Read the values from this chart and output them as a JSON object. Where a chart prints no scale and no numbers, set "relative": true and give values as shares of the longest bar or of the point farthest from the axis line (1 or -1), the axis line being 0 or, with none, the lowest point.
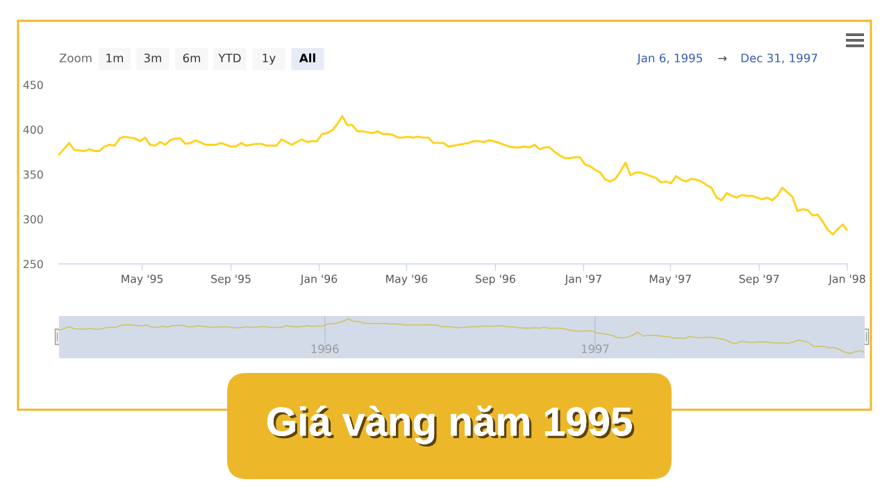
{
  "chart_data": [
    {
      "type": "line",
      "title": "Giá vàng năm 1995",
      "x": [
        "1995-01-06",
        "1995-01-20",
        "1995-01-27",
        "1995-02-10",
        "1995-02-17",
        "1995-02-24",
        "1995-03-03",
        "1995-03-10",
        "1995-03-17",
        "1995-03-24",
        "1995-03-31",
        "1995-04-07",
        "1995-04-21",
        "1995-04-28",
        "1995-05-05",
        "1995-05-12",
        "1995-05-19",
        "1995-05-26",
        "1995-06-02",
        "1995-06-09",
        "1995-06-16",
        "1995-06-23",
        "1995-06-30",
        "1995-07-07",
        "1995-07-14",
        "1995-07-28",
        "1995-08-11",
        "1995-08-18",
        "1995-08-25",
        "1995-09-01",
        "1995-09-08",
        "1995-09-15",
        "1995-09-22",
        "1995-09-29",
        "1995-10-06",
        "1995-10-13",
        "1995-10-20",
        "1995-11-03",
        "1995-11-10",
        "1995-11-17",
        "1995-11-24",
        "1995-12-01",
        "1995-12-08",
        "1995-12-15",
        "1995-12-22",
        "1995-12-29",
        "1996-01-05",
        "1996-01-12",
        "1996-01-19",
        "1996-01-26",
        "1996-02-02",
        "1996-02-09",
        "1996-02-16",
        "1996-02-23",
        "1996-03-01",
        "1996-03-08",
        "1996-03-15",
        "1996-03-22",
        "1996-03-29",
        "1996-04-05",
        "1996-04-12",
        "1996-04-19",
        "1996-04-26",
        "1996-05-03",
        "1996-05-10",
        "1996-05-17",
        "1996-05-24",
        "1996-05-31",
        "1996-06-07",
        "1996-06-14",
        "1996-06-21",
        "1996-06-28",
        "1996-07-05",
        "1996-07-12",
        "1996-07-19",
        "1996-07-26",
        "1996-08-02",
        "1996-08-09",
        "1996-08-16",
        "1996-08-23",
        "1996-08-30",
        "1996-09-06",
        "1996-09-13",
        "1996-09-20",
        "1996-09-27",
        "1996-10-04",
        "1996-10-11",
        "1996-10-18",
        "1996-10-25",
        "1996-11-01",
        "1996-11-08",
        "1996-11-15",
        "1996-11-22",
        "1996-11-29",
        "1996-12-06",
        "1996-12-13",
        "1996-12-20",
        "1996-12-27",
        "1997-01-03",
        "1997-01-10",
        "1997-01-17",
        "1997-01-24",
        "1997-01-31",
        "1997-02-07",
        "1997-02-14",
        "1997-02-21",
        "1997-02-28",
        "1997-03-07",
        "1997-03-14",
        "1997-03-21",
        "1997-03-28",
        "1997-04-04",
        "1997-04-11",
        "1997-04-18",
        "1997-04-25",
        "1997-05-02",
        "1997-05-09",
        "1997-05-16",
        "1997-05-23",
        "1997-05-30",
        "1997-06-06",
        "1997-06-13",
        "1997-06-20",
        "1997-06-27",
        "1997-07-04",
        "1997-07-11",
        "1997-07-18",
        "1997-07-25",
        "1997-08-01",
        "1997-08-08",
        "1997-08-15",
        "1997-08-22",
        "1997-08-29",
        "1997-09-05",
        "1997-09-12",
        "1997-09-19",
        "1997-09-26",
        "1997-10-03",
        "1997-10-10",
        "1997-10-17",
        "1997-10-24",
        "1997-10-31",
        "1997-11-07",
        "1997-11-14",
        "1997-11-21",
        "1997-11-28",
        "1997-12-05",
        "1997-12-12",
        "1997-12-19",
        "1997-12-26",
        "1997-12-31"
      ],
      "series": [
        {
          "color": "#ffd21a",
          "values": [
            372,
            385,
            377,
            376,
            378,
            376,
            376,
            381,
            383,
            382,
            390,
            392,
            390,
            387,
            391,
            383,
            382,
            386,
            383,
            388,
            390,
            390,
            384,
            385,
            388,
            383,
            383,
            385,
            383,
            381,
            381,
            385,
            382,
            383,
            384,
            384,
            382,
            382,
            389,
            386,
            383,
            386,
            389,
            386,
            387,
            387,
            395,
            396,
            399,
            406,
            415,
            405,
            405,
            398,
            398,
            397,
            396,
            398,
            395,
            395,
            394,
            391,
            391,
            392,
            391,
            392,
            391,
            391,
            385,
            385,
            385,
            381,
            382,
            383,
            384,
            385,
            387,
            387,
            386,
            388,
            387,
            385,
            383,
            381,
            380,
            380,
            381,
            380,
            383,
            378,
            380,
            380,
            375,
            371,
            368,
            368,
            369,
            369,
            361,
            359,
            355,
            352,
            344,
            342,
            345,
            353,
            363,
            349,
            352,
            352,
            350,
            348,
            346,
            341,
            342,
            340,
            348,
            344,
            342,
            345,
            344,
            342,
            338,
            335,
            324,
            321,
            329,
            326,
            324,
            327,
            326,
            326,
            324,
            322,
            324,
            321,
            326,
            335,
            330,
            325,
            309,
            311,
            310,
            304,
            305,
            297,
            288,
            283,
            289,
            294,
            288
          ]
        }
      ],
      "xlim": [
        "1995-01-06",
        "1998-01-01"
      ],
      "xticks": [
        {
          "value": "1995-05-01",
          "label": "May '95"
        },
        {
          "value": "1995-09-01",
          "label": "Sep '95"
        },
        {
          "value": "1996-01-01",
          "label": "Jan '96"
        },
        {
          "value": "1996-05-01",
          "label": "May '96"
        },
        {
          "value": "1996-09-01",
          "label": "Sep '96"
        },
        {
          "value": "1997-01-01",
          "label": "Jan '97"
        },
        {
          "value": "1997-05-01",
          "label": "May '97"
        },
        {
          "value": "1997-09-01",
          "label": "Sep '97"
        },
        {
          "value": "1998-01-01",
          "label": "Jan '98"
        }
      ],
      "ylim": [
        250,
        450
      ],
      "yticks": [
        250,
        300,
        350,
        400,
        450
      ],
      "annotations": [
        "Zoom",
        "1m",
        "3m",
        "6m",
        "YTD",
        "1y",
        "All",
        "Jan 6, 1995",
        "→",
        "Dec 31, 1997"
      ]
    },
    {
      "type": "line",
      "relative": true,
      "x": [
        "1995-01-06",
        "1995-01-20",
        "1995-01-27",
        "1995-02-10",
        "1995-02-17",
        "1995-02-24",
        "1995-03-03",
        "1995-03-10",
        "1995-03-17",
        "1995-03-24",
        "1995-03-31",
        "1995-04-07",
        "1995-04-21",
        "1995-04-28",
        "1995-05-05",
        "1995-05-12",
        "1995-05-19",
        "1995-05-26",
        "1995-06-02",
        "1995-06-09",
        "1995-06-16",
        "1995-06-23",
        "1995-06-30",
        "1995-07-07",
        "1995-07-14",
        "1995-07-28",
        "1995-08-11",
        "1995-08-18",
        "1995-08-25",
        "1995-09-01",
        "1995-09-08",
        "1995-09-15",
        "1995-09-22",
        "1995-09-29",
        "1995-10-06",
        "1995-10-13",
        "1995-10-20",
        "1995-11-03",
        "1995-11-10",
        "1995-11-17",
        "1995-11-24",
        "1995-12-01",
        "1995-12-08",
        "1995-12-15",
        "1995-12-22",
        "1995-12-29",
        "1996-01-05",
        "1996-01-12",
        "1996-01-19",
        "1996-01-26",
        "1996-02-02",
        "1996-02-09",
        "1996-02-16",
        "1996-02-23",
        "1996-03-01",
        "1996-03-08",
        "1996-03-15",
        "1996-03-22",
        "1996-03-29",
        "1996-04-05",
        "1996-04-12",
        "1996-04-19",
        "1996-04-26",
        "1996-05-03",
        "1996-05-10",
        "1996-05-17",
        "1996-05-24",
        "1996-05-31",
        "1996-06-07",
        "1996-06-14",
        "1996-06-21",
        "1996-06-28",
        "1996-07-05",
        "1996-07-12",
        "1996-07-19",
        "1996-07-26",
        "1996-08-02",
        "1996-08-09",
        "1996-08-16",
        "1996-08-23",
        "1996-08-30",
        "1996-09-06",
        "1996-09-13",
        "1996-09-20",
        "1996-09-27",
        "1996-10-04",
        "1996-10-11",
        "1996-10-18",
        "1996-10-25",
        "1996-11-01",
        "1996-11-08",
        "1996-11-15",
        "1996-11-22",
        "1996-11-29",
        "1996-12-06",
        "1996-12-13",
        "1996-12-20",
        "1996-12-27",
        "1997-01-03",
        "1997-01-10",
        "1997-01-17",
        "1997-01-24",
        "1997-01-31",
        "1997-02-07",
        "1997-02-14",
        "1997-02-21",
        "1997-02-28",
        "1997-03-07",
        "1997-03-14",
        "1997-03-21",
        "1997-03-28",
        "1997-04-04",
        "1997-04-11",
        "1997-04-18",
        "1997-04-25",
        "1997-05-02",
        "1997-05-09",
        "1997-05-16",
        "1997-05-23",
        "1997-05-30",
        "1997-06-06",
        "1997-06-13",
        "1997-06-20",
        "1997-06-27",
        "1997-07-04",
        "1997-07-11",
        "1997-07-18",
        "1997-07-25",
        "1997-08-01",
        "1997-08-08",
        "1997-08-15",
        "1997-08-22",
        "1997-08-29",
        "1997-09-05",
        "1997-09-12",
        "1997-09-19",
        "1997-09-26",
        "1997-10-03",
        "1997-10-10",
        "1997-10-17",
        "1997-10-24",
        "1997-10-31",
        "1997-11-07",
        "1997-11-14",
        "1997-11-21",
        "1997-11-28",
        "1997-12-05",
        "1997-12-12",
        "1997-12-19",
        "1997-12-26",
        "1997-12-31"
      ],
      "series": [
        {
          "color": "#cfc25a",
          "values": [
            0.67,
            0.77,
            0.71,
            0.7,
            0.72,
            0.7,
            0.7,
            0.74,
            0.76,
            0.75,
            0.81,
            0.83,
            0.81,
            0.79,
            0.82,
            0.76,
            0.75,
            0.78,
            0.76,
            0.8,
            0.81,
            0.81,
            0.77,
            0.77,
            0.8,
            0.76,
            0.76,
            0.77,
            0.76,
            0.74,
            0.74,
            0.77,
            0.75,
            0.76,
            0.77,
            0.77,
            0.75,
            0.75,
            0.8,
            0.78,
            0.76,
            0.78,
            0.8,
            0.78,
            0.79,
            0.79,
            0.85,
            0.86,
            0.88,
            0.93,
            1,
            0.92,
            0.92,
            0.87,
            0.87,
            0.86,
            0.86,
            0.87,
            0.85,
            0.85,
            0.84,
            0.82,
            0.82,
            0.83,
            0.82,
            0.83,
            0.82,
            0.82,
            0.77,
            0.77,
            0.77,
            0.74,
            0.75,
            0.76,
            0.77,
            0.77,
            0.79,
            0.79,
            0.78,
            0.8,
            0.79,
            0.77,
            0.76,
            0.74,
            0.73,
            0.73,
            0.74,
            0.73,
            0.76,
            0.72,
            0.73,
            0.73,
            0.7,
            0.67,
            0.64,
            0.64,
            0.65,
            0.65,
            0.59,
            0.58,
            0.55,
            0.52,
            0.46,
            0.45,
            0.47,
            0.53,
            0.61,
            0.5,
            0.52,
            0.52,
            0.51,
            0.49,
            0.48,
            0.44,
            0.45,
            0.43,
            0.49,
            0.46,
            0.45,
            0.47,
            0.46,
            0.45,
            0.42,
            0.39,
            0.31,
            0.29,
            0.35,
            0.33,
            0.31,
            0.33,
            0.33,
            0.33,
            0.31,
            0.3,
            0.31,
            0.29,
            0.33,
            0.39,
            0.36,
            0.32,
            0.2,
            0.21,
            0.2,
            0.16,
            0.17,
            0.11,
            0.04,
            0,
            0.05,
            0.08,
            0.04
          ]
        }
      ],
      "xlim": [
        "1995-01-06",
        "1998-01-01"
      ],
      "xticks": [
        {
          "value": "1996-01-01",
          "label": "1996"
        },
        {
          "value": "1997-01-01",
          "label": "1997"
        }
      ],
      "grid": "x",
      "bands": [
        {
          "axis": "x",
          "from": "1995-01-06",
          "to": "1998-01-01",
          "color": "#d3dbe9"
        }
      ]
    }
  ]
}
